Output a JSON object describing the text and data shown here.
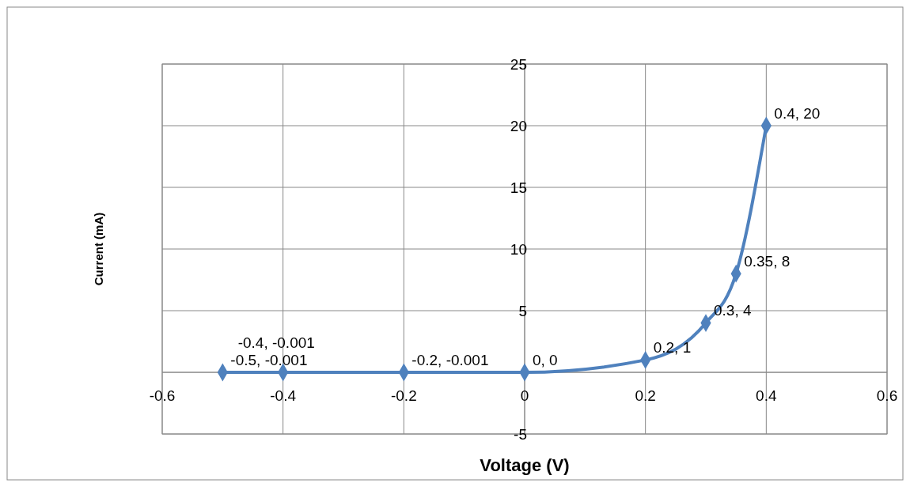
{
  "chart_data": {
    "type": "line",
    "xlabel": "Voltage (V)",
    "ylabel": "Current (mA)",
    "x": [
      -0.5,
      -0.4,
      -0.2,
      0,
      0.2,
      0.3,
      0.35,
      0.4
    ],
    "series": [
      {
        "color": "#4f81bd",
        "values": [
          -0.001,
          -0.001,
          -0.001,
          0,
          1,
          4,
          8,
          20
        ],
        "value_labels": [
          "-0.5, -0.001",
          "-0.4, -0.001",
          "-0.2, -0.001",
          "0, 0",
          "0.2, 1",
          "0.3, 4",
          "0.35, 8",
          "0.4, 20"
        ]
      }
    ],
    "xlim": [
      -0.6,
      0.6
    ],
    "xticks": [
      -0.6,
      -0.4,
      -0.2,
      0,
      0.2,
      0.4,
      0.6
    ],
    "ylim": [
      -5,
      25
    ],
    "yticks": [
      -5,
      {
        "value": 0,
        "label": null
      },
      5,
      10,
      15,
      20,
      25
    ],
    "grid": true,
    "marker": "diamond",
    "line_style": "solid"
  }
}
